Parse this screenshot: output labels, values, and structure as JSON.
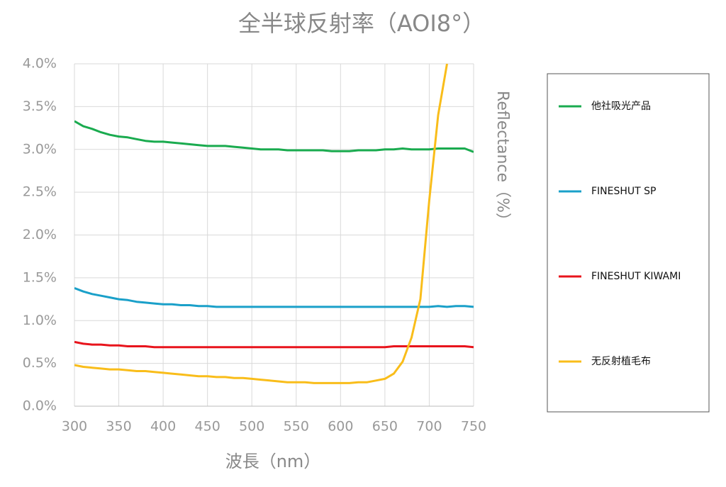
{
  "chart_data": {
    "type": "line",
    "title": "全半球反射率（AOI8°）",
    "x_label": "波長（nm）",
    "y_label": "Reflectance（%）",
    "x": [
      300,
      310,
      320,
      330,
      340,
      350,
      360,
      370,
      380,
      390,
      400,
      410,
      420,
      430,
      440,
      450,
      460,
      470,
      480,
      490,
      500,
      510,
      520,
      530,
      540,
      550,
      560,
      570,
      580,
      590,
      600,
      610,
      620,
      630,
      640,
      650,
      660,
      670,
      680,
      690,
      700,
      710,
      720,
      730,
      740,
      750
    ],
    "series": [
      {
        "name": "他社吸光产品",
        "color": "#1aab4f",
        "values": [
          3.33,
          3.27,
          3.24,
          3.2,
          3.17,
          3.15,
          3.14,
          3.12,
          3.1,
          3.09,
          3.09,
          3.08,
          3.07,
          3.06,
          3.05,
          3.04,
          3.04,
          3.04,
          3.03,
          3.02,
          3.01,
          3.0,
          3.0,
          3.0,
          2.99,
          2.99,
          2.99,
          2.99,
          2.99,
          2.98,
          2.98,
          2.98,
          2.99,
          2.99,
          2.99,
          3.0,
          3.0,
          3.01,
          3.0,
          3.0,
          3.0,
          3.01,
          3.01,
          3.01,
          3.01,
          2.97
        ]
      },
      {
        "name": "FINESHUT SP",
        "color": "#1aa0c9",
        "values": [
          1.38,
          1.34,
          1.31,
          1.29,
          1.27,
          1.25,
          1.24,
          1.22,
          1.21,
          1.2,
          1.19,
          1.19,
          1.18,
          1.18,
          1.17,
          1.17,
          1.16,
          1.16,
          1.16,
          1.16,
          1.16,
          1.16,
          1.16,
          1.16,
          1.16,
          1.16,
          1.16,
          1.16,
          1.16,
          1.16,
          1.16,
          1.16,
          1.16,
          1.16,
          1.16,
          1.16,
          1.16,
          1.16,
          1.16,
          1.16,
          1.16,
          1.17,
          1.16,
          1.17,
          1.17,
          1.16
        ]
      },
      {
        "name": "FINESHUT KIWAMI",
        "color": "#e8141c",
        "values": [
          0.75,
          0.73,
          0.72,
          0.72,
          0.71,
          0.71,
          0.7,
          0.7,
          0.7,
          0.69,
          0.69,
          0.69,
          0.69,
          0.69,
          0.69,
          0.69,
          0.69,
          0.69,
          0.69,
          0.69,
          0.69,
          0.69,
          0.69,
          0.69,
          0.69,
          0.69,
          0.69,
          0.69,
          0.69,
          0.69,
          0.69,
          0.69,
          0.69,
          0.69,
          0.69,
          0.69,
          0.7,
          0.7,
          0.7,
          0.7,
          0.7,
          0.7,
          0.7,
          0.7,
          0.7,
          0.69
        ]
      },
      {
        "name": "无反射植毛布",
        "color": "#f9bd1a",
        "values": [
          0.48,
          0.46,
          0.45,
          0.44,
          0.43,
          0.43,
          0.42,
          0.41,
          0.41,
          0.4,
          0.39,
          0.38,
          0.37,
          0.36,
          0.35,
          0.35,
          0.34,
          0.34,
          0.33,
          0.33,
          0.32,
          0.31,
          0.3,
          0.29,
          0.28,
          0.28,
          0.28,
          0.27,
          0.27,
          0.27,
          0.27,
          0.27,
          0.28,
          0.28,
          0.3,
          0.32,
          0.38,
          0.52,
          0.8,
          1.25,
          2.4,
          3.4,
          4.0,
          null,
          null,
          null
        ]
      }
    ],
    "xlim": [
      300,
      750
    ],
    "xticks": [
      300,
      350,
      400,
      450,
      500,
      550,
      600,
      650,
      700,
      750
    ],
    "ylim": [
      0,
      4
    ],
    "yticks": [
      {
        "value": 0,
        "label": "0.0%"
      },
      {
        "value": 0.5,
        "label": "0.5%"
      },
      {
        "value": 1,
        "label": "1.0%"
      },
      {
        "value": 1.5,
        "label": "1.5%"
      },
      {
        "value": 2,
        "label": "2.0%"
      },
      {
        "value": 2.5,
        "label": "2.5%"
      },
      {
        "value": 3,
        "label": "3.0%"
      },
      {
        "value": 3.5,
        "label": "3.5%"
      },
      {
        "value": 4,
        "label": "4.0%"
      }
    ],
    "grid": true,
    "legend": "right"
  }
}
